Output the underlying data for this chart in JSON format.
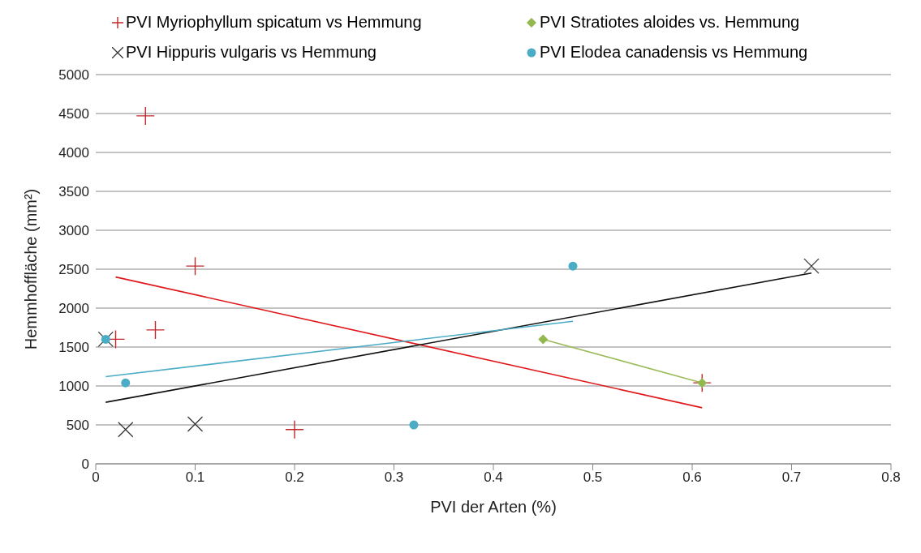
{
  "chart_data": {
    "type": "scatter",
    "xlabel": "PVI  der Arten (%)",
    "ylabel": "Hemmhoffläche (mm²)",
    "xlim": [
      0,
      0.8
    ],
    "xticks": [
      0,
      0.1,
      0.2,
      0.3,
      0.4,
      0.5,
      0.6,
      0.7,
      0.8
    ],
    "ylim": [
      0,
      5000
    ],
    "yticks": [
      0,
      500,
      1000,
      1500,
      2000,
      2500,
      3000,
      3500,
      4000,
      4500,
      5000
    ],
    "grid": "y",
    "legend": "top",
    "series": [
      {
        "name": "PVI Myriophyllum spicatum vs Hemmung",
        "color": "#c0282d",
        "marker": "cross",
        "x": [
          0.05,
          0.1,
          0.06,
          0.02,
          0.2,
          0.61
        ],
        "values": [
          4470,
          2540,
          1720,
          1600,
          440,
          1040
        ]
      },
      {
        "name": "PVI Stratiotes aloides vs. Hemmung",
        "color": "#92b84e",
        "marker": "diamond",
        "x": [
          0.45,
          0.61
        ],
        "values": [
          1600,
          1040
        ]
      },
      {
        "name": "PVI Hippuris vulgaris vs Hemmung",
        "color": "#333333",
        "marker": "x",
        "x": [
          0.01,
          0.03,
          0.1,
          0.72
        ],
        "values": [
          1600,
          440,
          510,
          2540
        ]
      },
      {
        "name": "PVI Elodea canadensis vs Hemmung",
        "color": "#4bacc6",
        "marker": "circle",
        "x": [
          0.01,
          0.03,
          0.32,
          0.48
        ],
        "values": [
          1600,
          1040,
          500,
          2540
        ]
      },
      {
        "type": "line",
        "color": "#e0181c",
        "x": [
          0.02,
          0.61
        ],
        "values": [
          2400,
          720
        ]
      },
      {
        "type": "line",
        "color": "#9bbb59",
        "x": [
          0.45,
          0.61
        ],
        "values": [
          1600,
          1040
        ]
      },
      {
        "type": "line",
        "color": "#111111",
        "x": [
          0.01,
          0.72
        ],
        "values": [
          790,
          2450
        ]
      },
      {
        "type": "line",
        "color": "#4bacc6",
        "x": [
          0.01,
          0.48
        ],
        "values": [
          1120,
          1830
        ]
      }
    ]
  }
}
